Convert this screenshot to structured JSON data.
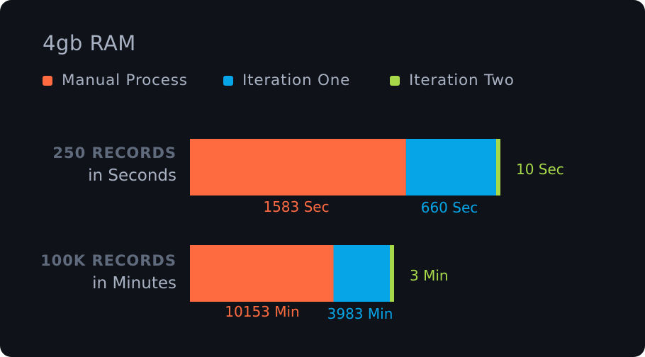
{
  "title": "4gb RAM",
  "colors": {
    "background": "#0f1219",
    "manual": "#ff6b40",
    "iteration_one": "#05a5e8",
    "iteration_two": "#a7d84a",
    "label_muted": "#5f6a7c",
    "label_light": "#a8b1c2"
  },
  "legend": [
    {
      "label": "Manual Process",
      "color": "#ff6b40"
    },
    {
      "label": "Iteration One",
      "color": "#05a5e8"
    },
    {
      "label": "Iteration Two",
      "color": "#a7d84a"
    }
  ],
  "rows": [
    {
      "title": "250 RECORDS",
      "subtitle": "in Seconds"
    },
    {
      "title": "100K RECORDS",
      "subtitle": "in Minutes"
    }
  ],
  "chart_data": {
    "type": "bar",
    "orientation": "horizontal",
    "stacked": true,
    "title": "4gb RAM",
    "legend_position": "top-left",
    "grid": false,
    "categories": [
      "250 RECORDS in Seconds",
      "100K RECORDS in Minutes"
    ],
    "series": [
      {
        "name": "Manual Process",
        "color": "#ff6b40",
        "values": [
          1583,
          10153
        ],
        "labels": [
          "1583 Sec",
          "10153 Min"
        ]
      },
      {
        "name": "Iteration One",
        "color": "#05a5e8",
        "values": [
          660,
          3983
        ],
        "labels": [
          "660 Sec",
          "3983 Min"
        ]
      },
      {
        "name": "Iteration Two",
        "color": "#a7d84a",
        "values": [
          10,
          3
        ],
        "labels": [
          "10 Sec",
          "3 Min"
        ]
      }
    ]
  }
}
